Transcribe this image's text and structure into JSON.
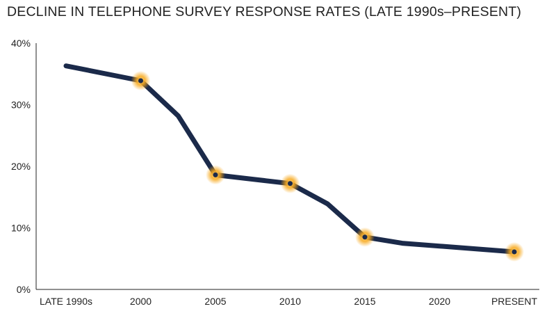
{
  "chart_data": {
    "type": "line",
    "title": "DECLINE IN TELEPHONE SURVEY RESPONSE RATES (LATE 1990s–PRESENT)",
    "xlabel": "",
    "ylabel": "",
    "x_ticks": [
      "LATE 1990s",
      "2000",
      "2005",
      "2010",
      "2015",
      "2020",
      "PRESENT"
    ],
    "y_ticks": [
      "0%",
      "10%",
      "20%",
      "30%",
      "40%"
    ],
    "ylim": [
      0,
      40
    ],
    "grid": false,
    "series": [
      {
        "points": [
          {
            "x": 0.0,
            "y": 36.3
          },
          {
            "x": 1.0,
            "y": 33.9,
            "highlight": true
          },
          {
            "x": 1.5,
            "y": 28.2
          },
          {
            "x": 2.0,
            "y": 18.6,
            "highlight": true
          },
          {
            "x": 3.0,
            "y": 17.2,
            "highlight": true
          },
          {
            "x": 3.5,
            "y": 13.9
          },
          {
            "x": 4.0,
            "y": 8.5,
            "highlight": true
          },
          {
            "x": 4.5,
            "y": 7.5
          },
          {
            "x": 6.0,
            "y": 6.1,
            "highlight": true
          }
        ]
      }
    ],
    "colors": {
      "line": "#1b2a4a",
      "highlight": "#f7a81b",
      "axis": "#222222"
    }
  }
}
